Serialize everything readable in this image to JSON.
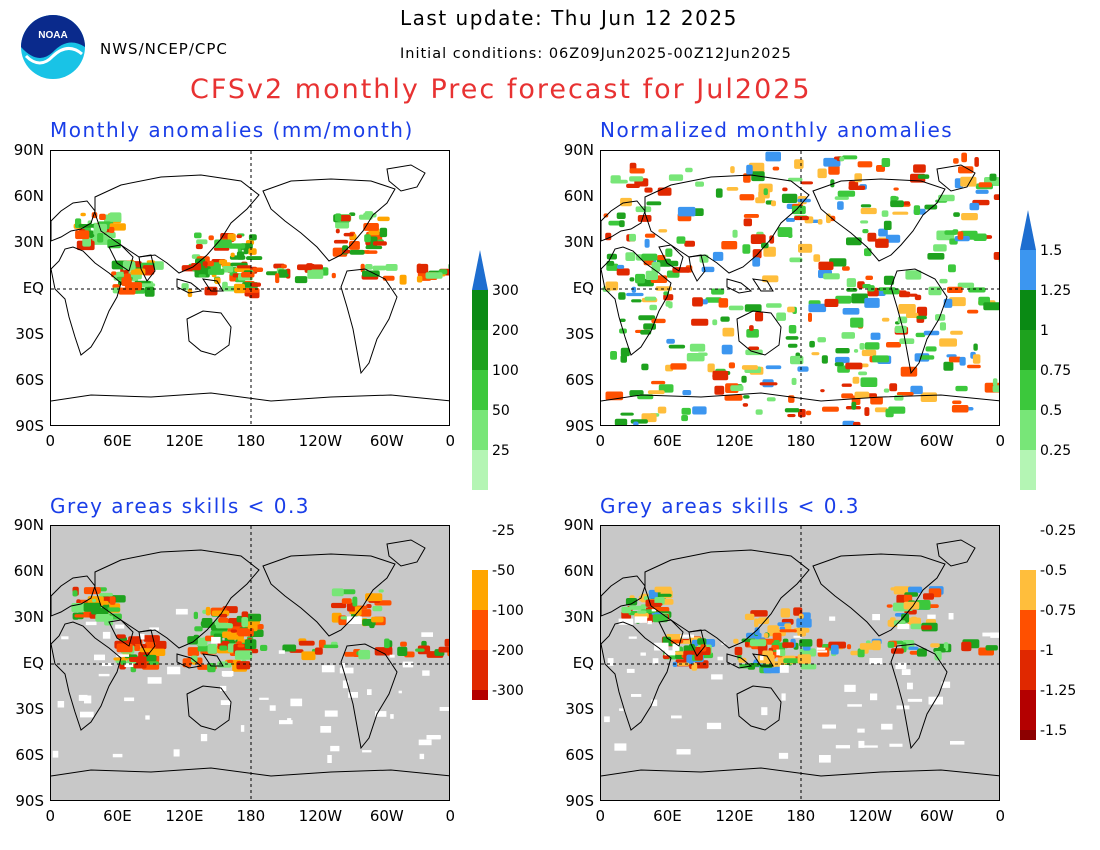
{
  "header": {
    "org": "NWS/NCEP/CPC",
    "last_update": "Last update: Thu Jun 12 2025",
    "initial_conditions": "Initial conditions: 06Z09Jun2025-00Z12Jun2025",
    "title": "CFSv2 monthly Prec forecast for Jul2025",
    "logo_text": "NOAA"
  },
  "panels": [
    {
      "id": "anom",
      "title": "Monthly anomalies (mm/month)",
      "background": "#ffffff",
      "colorbar": "mm"
    },
    {
      "id": "norm",
      "title": "Normalized monthly anomalies",
      "background": "#ffffff",
      "colorbar": "norm"
    },
    {
      "id": "anom_skill",
      "title": "Grey areas skills < 0.3",
      "background": "#c8c8c8",
      "colorbar": "mm"
    },
    {
      "id": "norm_skill",
      "title": "Grey areas skills < 0.3",
      "background": "#c8c8c8",
      "colorbar": "norm"
    }
  ],
  "axes": {
    "lat_labels": [
      "90N",
      "60N",
      "30N",
      "EQ",
      "30S",
      "60S",
      "90S"
    ],
    "lon_labels": [
      "0",
      "60E",
      "120E",
      "180",
      "120W",
      "60W",
      "0"
    ]
  },
  "colorbars": {
    "mm": {
      "labels": [
        "300",
        "200",
        "100",
        "50",
        "25",
        "-25",
        "-50",
        "-100",
        "-200",
        "-300"
      ],
      "colors": [
        "#1e6ed0",
        "#0a8a14",
        "#1ea21e",
        "#3cc83c",
        "#78e678",
        "#b4f5b4",
        "#ffffff",
        "#ffa500",
        "#ff5000",
        "#e02800",
        "#b40000",
        "#8c0000",
        "#6a4030"
      ]
    },
    "norm": {
      "labels": [
        "1.5",
        "1.25",
        "1",
        "0.75",
        "0.5",
        "0.25",
        "-0.25",
        "-0.5",
        "-0.75",
        "-1",
        "-1.25",
        "-1.5"
      ],
      "colors": [
        "#1e6ed0",
        "#3c96f0",
        "#0a8a14",
        "#1ea21e",
        "#3cc83c",
        "#78e678",
        "#b4f5b4",
        "#ffffff",
        "#ffbe3c",
        "#ff5000",
        "#e02800",
        "#b40000",
        "#8c0000",
        "#e88080",
        "#6a4030"
      ]
    }
  },
  "colors": {
    "title": "#e83232",
    "panel_title": "#1a3ee8",
    "skill_grey": "#c8c8c8"
  }
}
